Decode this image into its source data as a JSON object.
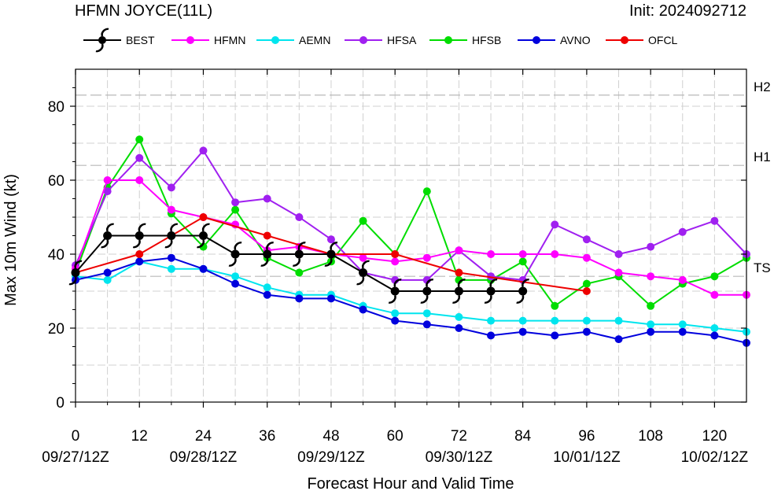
{
  "header": {
    "title": "HFMN JOYCE(11L)",
    "init": "Init: 2024092712"
  },
  "chart_data": {
    "type": "line",
    "xlabel": "Forecast Hour and Valid Time",
    "ylabel": "Max 10m Wind (kt)",
    "xlim": [
      0,
      126
    ],
    "ylim": [
      0,
      90
    ],
    "xticks": [
      0,
      12,
      24,
      36,
      48,
      60,
      72,
      84,
      96,
      108,
      120
    ],
    "xtick_labels": [
      "0",
      "12",
      "24",
      "36",
      "48",
      "60",
      "72",
      "84",
      "96",
      "108",
      "120"
    ],
    "date_labels": [
      {
        "hour": 0,
        "label": "09/27/12Z"
      },
      {
        "hour": 24,
        "label": "09/28/12Z"
      },
      {
        "hour": 48,
        "label": "09/29/12Z"
      },
      {
        "hour": 72,
        "label": "09/30/12Z"
      },
      {
        "hour": 96,
        "label": "10/01/12Z"
      },
      {
        "hour": 120,
        "label": "10/02/12Z"
      }
    ],
    "yticks": [
      0,
      20,
      40,
      60,
      80
    ],
    "ytick_labels": [
      "0",
      "20",
      "40",
      "60",
      "80"
    ],
    "thresholds": [
      {
        "label": "H2",
        "value": 83
      },
      {
        "label": "H1",
        "value": 64
      },
      {
        "label": "TS",
        "value": 34
      }
    ],
    "legend_position": "top",
    "series": [
      {
        "name": "BEST",
        "color": "#000000",
        "marker": "hurricane-symbol",
        "x": [
          0,
          6,
          12,
          18,
          24,
          30,
          36,
          42,
          48,
          54,
          60,
          66,
          72,
          78,
          84
        ],
        "values": [
          35,
          45,
          45,
          45,
          45,
          40,
          40,
          40,
          40,
          35,
          30,
          30,
          30,
          30,
          30
        ]
      },
      {
        "name": "HFMN",
        "color": "#ff00ff",
        "x": [
          0,
          6,
          12,
          18,
          24,
          30,
          36,
          42,
          48,
          54,
          60,
          66,
          72,
          78,
          84,
          90,
          96,
          102,
          108,
          114,
          120,
          126
        ],
        "values": [
          36,
          60,
          60,
          52,
          50,
          48,
          41,
          42,
          40,
          39,
          38,
          39,
          41,
          40,
          40,
          40,
          39,
          35,
          34,
          33,
          29,
          29
        ]
      },
      {
        "name": "AEMN",
        "color": "#00e5ee",
        "x": [
          0,
          6,
          12,
          18,
          24,
          30,
          36,
          42,
          48,
          54,
          60,
          66,
          72,
          78,
          84,
          90,
          96,
          102,
          108,
          114,
          120,
          126
        ],
        "values": [
          34,
          33,
          38,
          36,
          36,
          34,
          31,
          29,
          29,
          26,
          24,
          24,
          23,
          22,
          22,
          22,
          22,
          22,
          21,
          21,
          20,
          19
        ]
      },
      {
        "name": "HFSA",
        "color": "#a020f0",
        "x": [
          0,
          6,
          12,
          18,
          24,
          30,
          36,
          42,
          48,
          54,
          60,
          66,
          72,
          78,
          84,
          90,
          96,
          102,
          108,
          114,
          120,
          126
        ],
        "values": [
          37,
          57,
          66,
          58,
          68,
          54,
          55,
          50,
          44,
          35,
          33,
          33,
          41,
          34,
          33,
          48,
          44,
          40,
          42,
          46,
          49,
          40
        ]
      },
      {
        "name": "HFSB",
        "color": "#00dd00",
        "x": [
          0,
          6,
          12,
          18,
          24,
          30,
          36,
          42,
          48,
          54,
          60,
          66,
          72,
          78,
          84,
          90,
          96,
          102,
          108,
          114,
          120,
          126
        ],
        "values": [
          35,
          58,
          71,
          51,
          42,
          52,
          39,
          35,
          38,
          49,
          40,
          57,
          33,
          33,
          38,
          26,
          32,
          34,
          26,
          32,
          34,
          39
        ]
      },
      {
        "name": "AVNO",
        "color": "#0000dd",
        "x": [
          0,
          6,
          12,
          18,
          24,
          30,
          36,
          42,
          48,
          54,
          60,
          66,
          72,
          78,
          84,
          90,
          96,
          102,
          108,
          114,
          120,
          126
        ],
        "values": [
          33,
          35,
          38,
          39,
          36,
          32,
          29,
          28,
          28,
          25,
          22,
          21,
          20,
          18,
          19,
          18,
          19,
          17,
          19,
          19,
          18,
          16
        ]
      },
      {
        "name": "OFCL",
        "color": "#ee0000",
        "x": [
          0,
          12,
          24,
          36,
          48,
          60,
          72,
          96
        ],
        "values": [
          35,
          40,
          50,
          45,
          40,
          40,
          35,
          30
        ]
      }
    ]
  }
}
